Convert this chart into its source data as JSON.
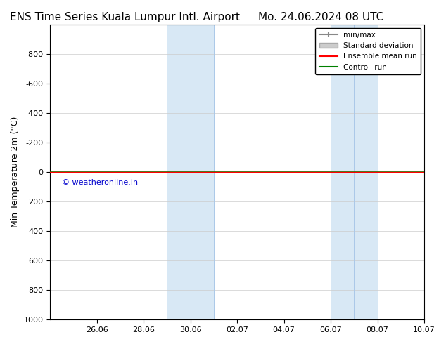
{
  "title_left": "ENS Time Series Kuala Lumpur Intl. Airport",
  "title_right": "Mo. 24.06.2024 08 UTC",
  "ylabel": "Min Temperature 2m (°C)",
  "ylim": [
    1000,
    -1000
  ],
  "yticks": [
    1000,
    800,
    600,
    400,
    200,
    0,
    -200,
    -400,
    -600,
    -800
  ],
  "xlim_start": "2024-06-24",
  "xlim_end": "2024-07-10",
  "xtick_labels": [
    "26.06",
    "28.06",
    "30.06",
    "02.07",
    "04.07",
    "06.07",
    "08.07",
    "10.07"
  ],
  "background_color": "#ffffff",
  "plot_bg_color": "#ffffff",
  "shaded_regions": [
    {
      "start": "2024-06-29",
      "end": "2024-07-01",
      "color": "#d8e8f5"
    },
    {
      "start": "2024-07-06",
      "end": "2024-07-08",
      "color": "#d8e8f5"
    }
  ],
  "shaded_region_lines": [
    {
      "x": "2024-06-29",
      "color": "#aac8e8"
    },
    {
      "x": "2024-06-30",
      "color": "#aac8e8"
    },
    {
      "x": "2024-07-01",
      "color": "#aac8e8"
    },
    {
      "x": "2024-07-06",
      "color": "#aac8e8"
    },
    {
      "x": "2024-07-07",
      "color": "#aac8e8"
    },
    {
      "x": "2024-07-08",
      "color": "#aac8e8"
    }
  ],
  "horizontal_line_y": 0,
  "line_color_green": "#008000",
  "line_color_red": "#ff0000",
  "copyright_text": "© weatheronline.in",
  "copyright_color": "#0000cc",
  "copyright_x": "2024-06-24.5",
  "legend_entries": [
    {
      "label": "min/max",
      "color": "#888888",
      "style": "line_with_cap"
    },
    {
      "label": "Standard deviation",
      "color": "#cccccc",
      "style": "filled"
    },
    {
      "label": "Ensemble mean run",
      "color": "#ff0000",
      "style": "line"
    },
    {
      "label": "Controll run",
      "color": "#008000",
      "style": "line"
    }
  ],
  "title_fontsize": 11,
  "axis_fontsize": 9,
  "tick_fontsize": 8
}
